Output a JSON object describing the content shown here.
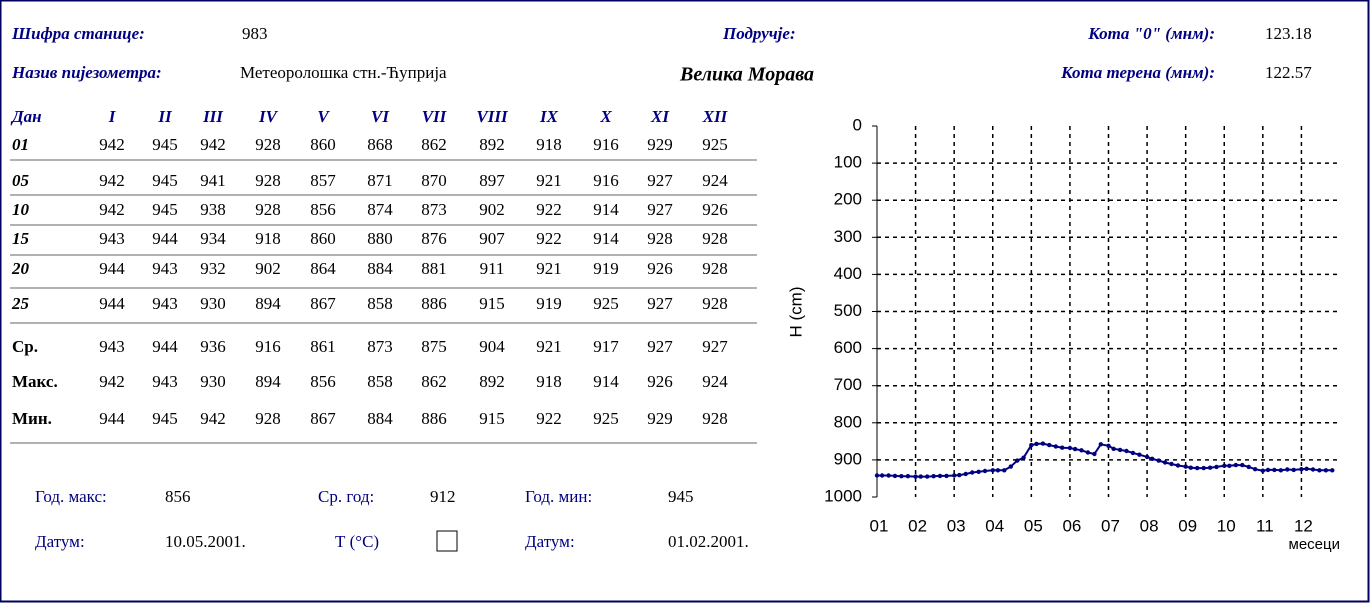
{
  "header": {
    "station_code_label": "Шифра станице:",
    "station_code": 983,
    "name_label": "Назив пијезометра:",
    "name": "Метеоролошка стн.-Ћуприја",
    "area_label": "Подручје:",
    "area": "Велика Морава",
    "kota0_label": "Кота \"0\" (мнм):",
    "kota0": 123.18,
    "kota_terrain_label": "Кота терена (мнм):",
    "kota_terrain": 122.57
  },
  "table": {
    "day_label": "Дан",
    "months": [
      "I",
      "II",
      "III",
      "IV",
      "V",
      "VI",
      "VII",
      "VIII",
      "IX",
      "X",
      "XI",
      "XII"
    ],
    "rows": [
      {
        "day": "01",
        "values": [
          942,
          945,
          942,
          928,
          860,
          868,
          862,
          892,
          918,
          916,
          929,
          925
        ]
      },
      {
        "day": "05",
        "values": [
          942,
          945,
          941,
          928,
          857,
          871,
          870,
          897,
          921,
          916,
          927,
          924
        ]
      },
      {
        "day": "10",
        "values": [
          942,
          945,
          938,
          928,
          856,
          874,
          873,
          902,
          922,
          914,
          927,
          926
        ]
      },
      {
        "day": "15",
        "values": [
          943,
          944,
          934,
          918,
          860,
          880,
          876,
          907,
          922,
          914,
          928,
          928
        ]
      },
      {
        "day": "20",
        "values": [
          944,
          943,
          932,
          902,
          864,
          884,
          881,
          911,
          921,
          919,
          926,
          928
        ]
      },
      {
        "day": "25",
        "values": [
          944,
          943,
          930,
          894,
          867,
          858,
          886,
          915,
          919,
          925,
          927,
          928
        ]
      }
    ],
    "stats": [
      {
        "label": "Ср.",
        "values": [
          943,
          944,
          936,
          916,
          861,
          873,
          875,
          904,
          921,
          917,
          927,
          927
        ]
      },
      {
        "label": "Макс.",
        "values": [
          942,
          943,
          930,
          894,
          856,
          858,
          862,
          892,
          918,
          914,
          926,
          924
        ]
      },
      {
        "label": "Мин.",
        "values": [
          944,
          945,
          942,
          928,
          867,
          884,
          886,
          915,
          922,
          925,
          929,
          928
        ]
      }
    ]
  },
  "footer": {
    "year_max_label": "Год. макс:",
    "year_max": 856,
    "year_avg_label": "Ср. год:",
    "year_avg": 912,
    "year_min_label": "Год. мин:",
    "year_min": 945,
    "date_label": "Датум:",
    "date_max": "10.05.2001.",
    "temp_label": "Т (°C)",
    "date_min_label": "Датум:",
    "date_min": "01.02.2001."
  },
  "chart_data": {
    "type": "line",
    "color": "#000080",
    "y_label": "H (cm)",
    "x_label": "месеци",
    "ylim": [
      0,
      1000
    ],
    "y_reversed": true,
    "yticks": [
      0,
      100,
      200,
      300,
      400,
      500,
      600,
      700,
      800,
      900,
      1000
    ],
    "xticks": [
      "01",
      "02",
      "03",
      "04",
      "05",
      "06",
      "07",
      "08",
      "09",
      "10",
      "11",
      "12"
    ],
    "grid": true
  }
}
